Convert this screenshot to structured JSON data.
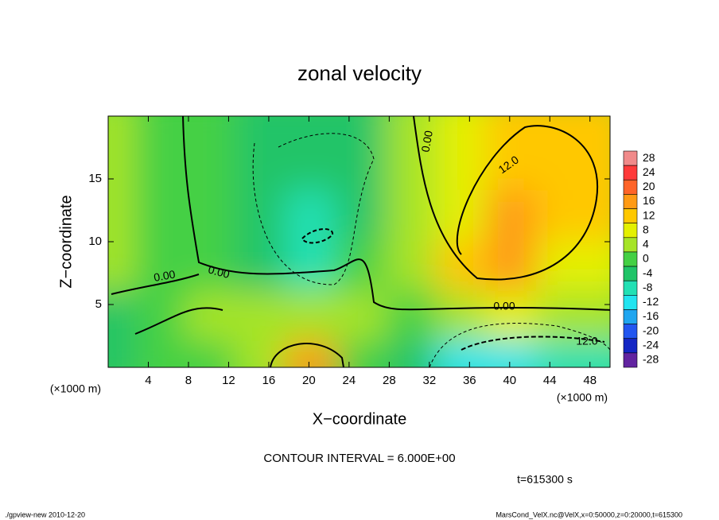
{
  "chart_data": {
    "type": "contour",
    "title": "zonal velocity",
    "xlabel": "X−coordinate",
    "ylabel": "Z−coordinate",
    "x_unit_labels": [
      "(×1000 m)",
      "(×1000 m)"
    ],
    "xlim": [
      0,
      50
    ],
    "ylim": [
      0,
      20
    ],
    "xticks": [
      4,
      8,
      12,
      16,
      20,
      24,
      28,
      32,
      36,
      40,
      44,
      48
    ],
    "yticks": [
      5,
      10,
      15
    ],
    "x": [
      2.5,
      7.5,
      12.5,
      17.5,
      22.5,
      27.5,
      32.5,
      37.5,
      42.5,
      47.5
    ],
    "y": [
      2,
      6,
      10,
      14,
      18
    ],
    "z": [
      [
        -6,
        0,
        0,
        2,
        14,
        0,
        -4,
        -12,
        -14,
        -10
      ],
      [
        -4,
        0,
        2,
        4,
        4,
        2,
        0,
        2,
        6,
        4
      ],
      [
        4,
        0,
        -2,
        -4,
        -8,
        -2,
        2,
        10,
        14,
        6
      ],
      [
        4,
        0,
        -2,
        -6,
        -8,
        -4,
        2,
        8,
        14,
        10
      ],
      [
        2,
        0,
        -2,
        -4,
        -6,
        -4,
        2,
        6,
        12,
        10
      ]
    ],
    "colorbar": {
      "ticks": [
        28,
        24,
        20,
        16,
        12,
        8,
        4,
        0,
        -4,
        -8,
        -12,
        -16,
        -20,
        -24,
        -28
      ],
      "colors": [
        "#f08a8a",
        "#ff3a3a",
        "#ff6428",
        "#ff9a14",
        "#ffc800",
        "#e4f000",
        "#a6e428",
        "#44d044",
        "#20c468",
        "#22e0b4",
        "#22e4f0",
        "#20a6f0",
        "#2256f0",
        "#1426c4",
        "#6224a0"
      ]
    },
    "contour_labels": [
      "0.00",
      "0.00",
      "0.00",
      "0.00",
      "12.0",
      "12.0"
    ],
    "contour_interval": "CONTOUR INTERVAL = 6.000E+00",
    "time_label": "t=615300 s",
    "footer_left": "./gpview-new  2010-12-20",
    "footer_right": "MarsCond_VelX.nc@VelX,x=0:50000,z=0:20000,t=615300"
  }
}
